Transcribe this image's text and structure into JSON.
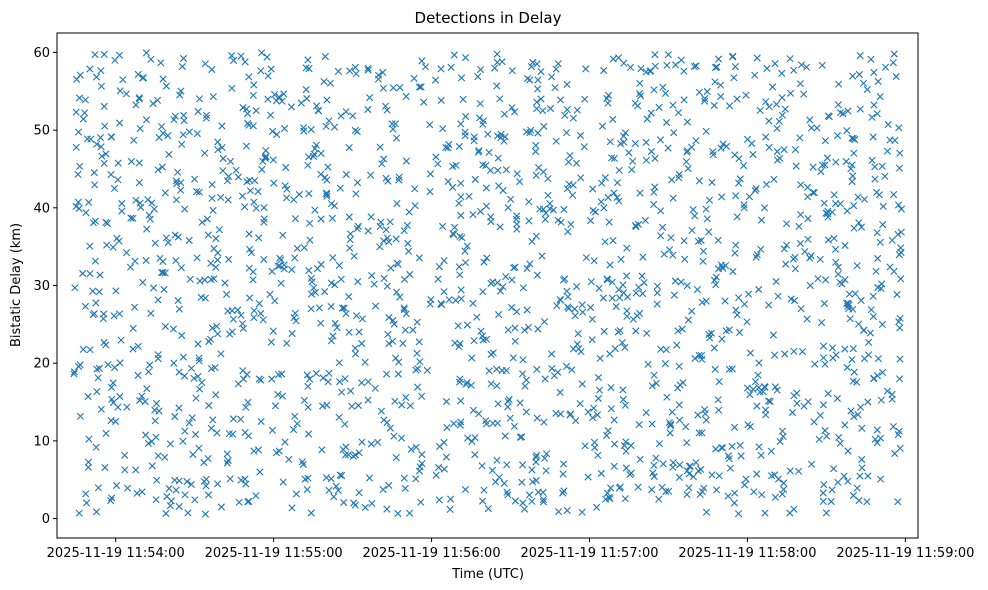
{
  "chart_data": {
    "type": "scatter",
    "title": "Detections in Delay",
    "xlabel": "Time (UTC)",
    "ylabel": "Bistatic Delay (km)",
    "marker": "x",
    "series_color": "#1f77b4",
    "grid": false,
    "x_tick_labels": [
      "2025-11-19 11:54:00",
      "2025-11-19 11:55:00",
      "2025-11-19 11:56:00",
      "2025-11-19 11:57:00",
      "2025-11-19 11:58:00",
      "2025-11-19 11:59:00"
    ],
    "x_tick_seconds": [
      60,
      120,
      180,
      240,
      300,
      360
    ],
    "xlim_seconds_after_1153": [
      37.7,
      364.8
    ],
    "data_x_range_seconds_after_1153": [
      44.0,
      358.5
    ],
    "ylim": [
      -2.5,
      62.5
    ],
    "yticks": [
      0,
      10,
      20,
      30,
      40,
      50,
      60
    ],
    "data_y_range_km": [
      0.5,
      60
    ],
    "approx_point_count": 1800,
    "distribution": "approximately uniform random over the data ranges",
    "random_seed": 20251119
  }
}
